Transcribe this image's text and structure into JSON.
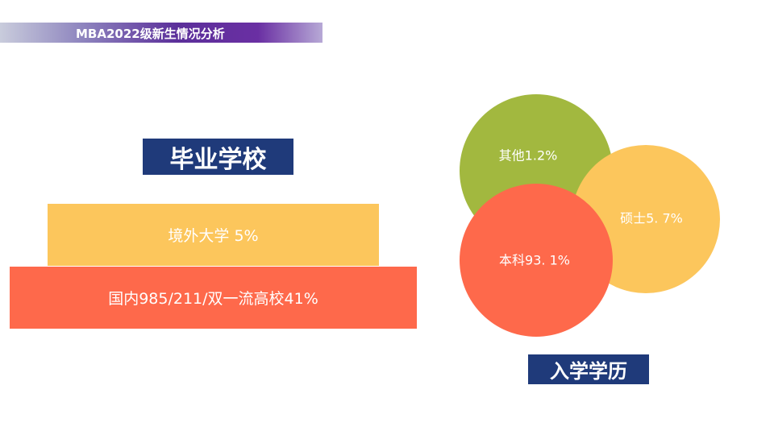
{
  "header": {
    "title": "MBA2022级新生情况分析"
  },
  "schools": {
    "title": "毕业学校",
    "items": [
      "境外大学 5%",
      "国内985/211/双一流高校41%"
    ]
  },
  "degrees": {
    "title": "入学学历",
    "items": [
      "其他1.2%",
      "硕士5. 7%",
      "本科93. 1%"
    ]
  }
}
